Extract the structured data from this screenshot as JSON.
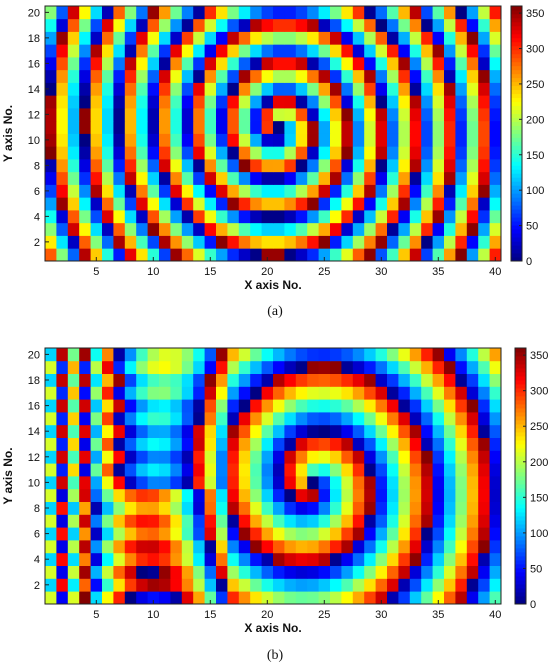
{
  "chart_data": [
    {
      "type": "heatmap",
      "caption": "(a)",
      "xlabel": "X axis No.",
      "ylabel": "Y axis No.",
      "xlim": [
        1,
        40
      ],
      "ylim": [
        1,
        20
      ],
      "xticks": [
        5,
        10,
        15,
        20,
        25,
        30,
        35,
        40
      ],
      "yticks": [
        2,
        4,
        6,
        8,
        10,
        12,
        14,
        16,
        18,
        20
      ],
      "colorbar": {
        "min": 0,
        "max": 360,
        "ticks": [
          0,
          50,
          100,
          150,
          200,
          250,
          300,
          350
        ],
        "colormap": "jet"
      },
      "field": {
        "model": "two-arm spiral phase",
        "center": [
          21,
          11
        ],
        "radial_period_cells": 3.1,
        "angle_scale": 1
      },
      "grid": false
    },
    {
      "type": "heatmap",
      "caption": "(b)",
      "xlabel": "X axis No.",
      "ylabel": "Y axis No.",
      "xlim": [
        1,
        40
      ],
      "ylim": [
        1,
        20
      ],
      "xticks": [
        5,
        10,
        15,
        20,
        25,
        30,
        35,
        40
      ],
      "yticks": [
        2,
        4,
        6,
        8,
        10,
        12,
        14,
        16,
        18,
        20
      ],
      "colorbar": {
        "min": 0,
        "max": 360,
        "ticks": [
          0,
          50,
          100,
          150,
          200,
          250,
          300,
          350
        ],
        "colormap": "jet"
      },
      "field": {
        "model": "one-arm spiral phase",
        "center": [
          24,
          10
        ],
        "radial_period_cells": 5.2,
        "angle_scale": 1,
        "left_vertical_bands_period_cells": 3
      },
      "grid": false
    }
  ]
}
